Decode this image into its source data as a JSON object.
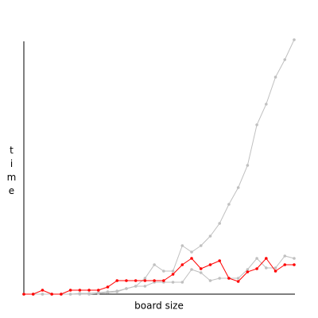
{
  "chart_data": {
    "type": "line",
    "xlabel": "board size",
    "ylabel": "time",
    "categories": [
      null,
      null,
      null,
      null,
      null,
      null,
      null,
      null,
      null,
      null,
      null,
      null,
      null,
      null,
      null,
      null,
      null,
      null,
      null,
      null,
      null,
      null,
      null,
      null,
      null,
      null,
      null,
      null,
      null,
      null
    ],
    "ylim": [
      0,
      320
    ],
    "series": [
      {
        "color": "#c0c0c0",
        "values": [
          0,
          0,
          0,
          0,
          0,
          0,
          1,
          1,
          2,
          3,
          4,
          7,
          10,
          20,
          37,
          29,
          29,
          61,
          53,
          61,
          73,
          89,
          113,
          134,
          162,
          213,
          239,
          273,
          295,
          320
        ]
      },
      {
        "color": "#c0c0c0",
        "values": [
          0,
          0,
          0,
          0,
          0,
          0,
          0,
          0,
          1,
          2,
          3,
          7,
          10,
          10,
          15,
          15,
          15,
          15,
          31,
          27,
          17,
          20,
          20,
          20,
          31,
          45,
          33,
          33,
          48,
          45
        ]
      },
      {
        "color": "#ff0000",
        "values": [
          0,
          0,
          5,
          0,
          0,
          5,
          5,
          5,
          5,
          9,
          17,
          17,
          17,
          17,
          17,
          17,
          25,
          37,
          45,
          32,
          37,
          42,
          20,
          16,
          28,
          32,
          45,
          29,
          37,
          37
        ]
      }
    ]
  }
}
